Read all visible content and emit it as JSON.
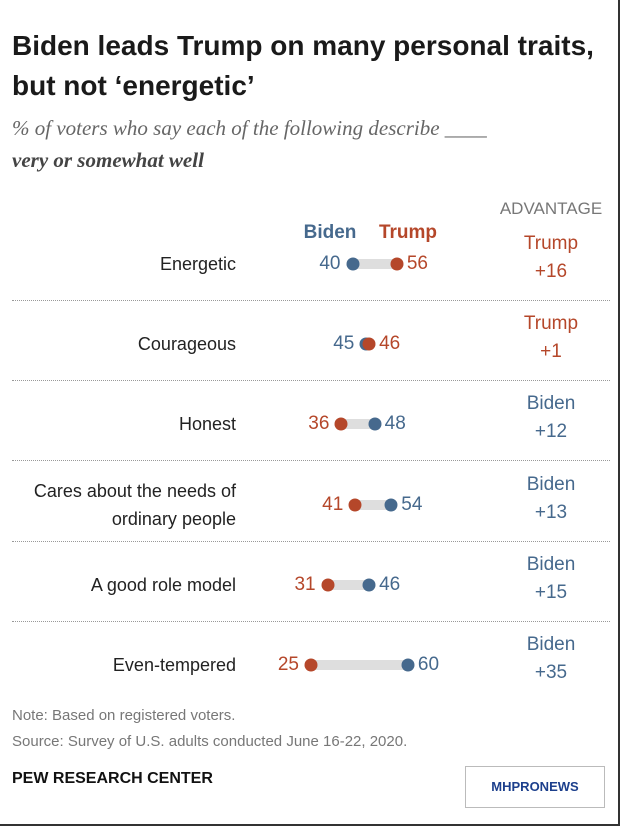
{
  "chart_data": {
    "type": "dot",
    "title": "Biden leads Trump on many personal traits, but not ‘energetic’",
    "subtitle": [
      "% of voters who say each of the following describe ____",
      "very or somewhat well"
    ],
    "categories": [
      "Energetic",
      "Courageous",
      "Honest",
      "Cares about the needs of ordinary people",
      "A good role model",
      "Even-tempered"
    ],
    "series": [
      {
        "name": "Biden",
        "color": "#46698d",
        "values": [
          40,
          45,
          48,
          54,
          46,
          60
        ]
      },
      {
        "name": "Trump",
        "color": "#b5472a",
        "values": [
          56,
          46,
          36,
          41,
          31,
          25
        ]
      }
    ],
    "advantage": {
      "title": "ADVANTAGE",
      "leaders": [
        "Trump",
        "Trump",
        "Biden",
        "Biden",
        "Biden",
        "Biden"
      ],
      "values": [
        16,
        1,
        12,
        13,
        15,
        35
      ],
      "value_labels": [
        "+16",
        "+1",
        "+12",
        "+13",
        "+15",
        "+35"
      ]
    },
    "note": "Note: Based on registered voters.",
    "source": "Source: Survey of U.S. adults conducted June 16-22, 2020.",
    "brand": "PEW RESEARCH CENTER",
    "watermark": "MHPRONEWS"
  }
}
